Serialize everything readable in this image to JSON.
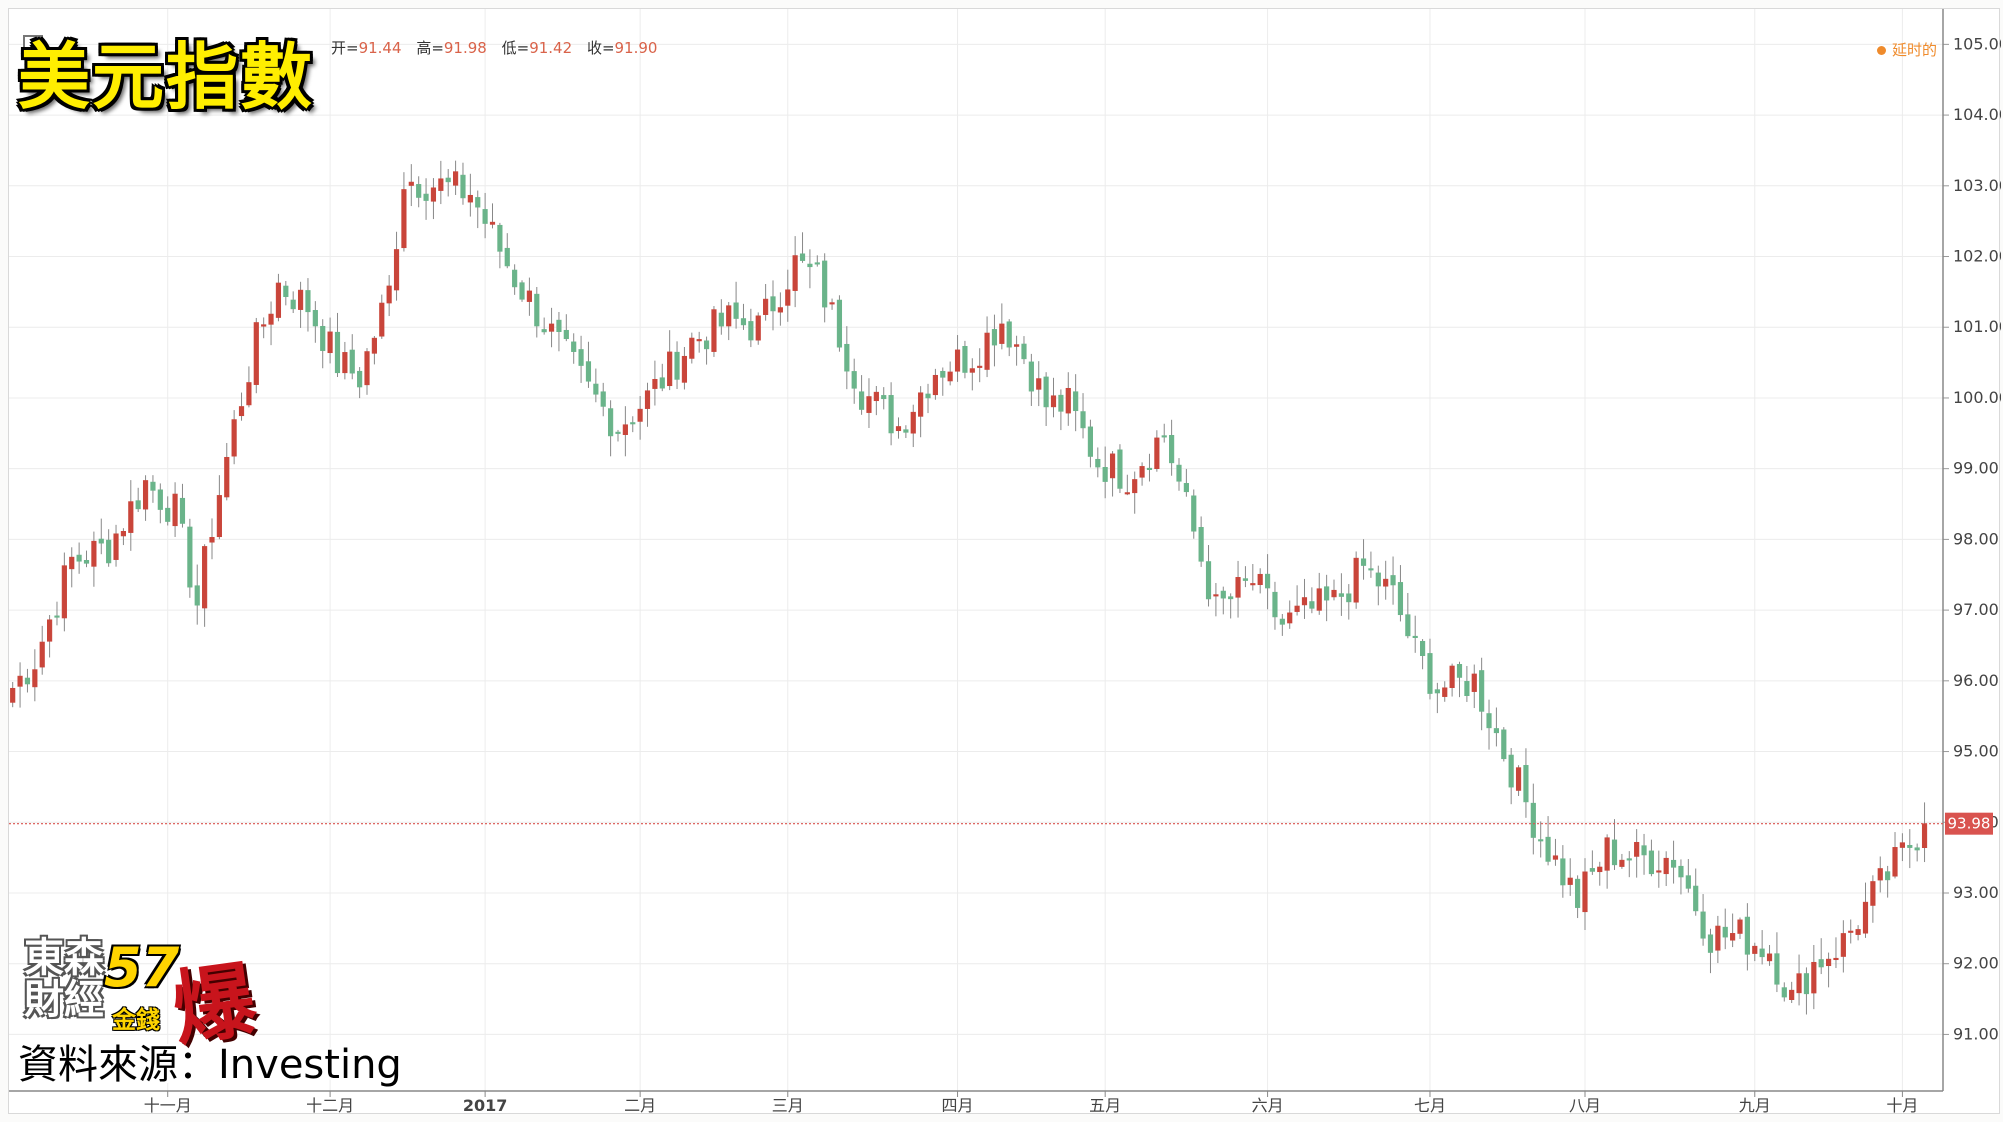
{
  "header": {
    "overlay_title": "美元指數",
    "ohlc": [
      {
        "label": "开=",
        "value": "91.44"
      },
      {
        "label": "高=",
        "value": "91.98"
      },
      {
        "label": "低=",
        "value": "91.42"
      },
      {
        "label": "收=",
        "value": "91.90"
      }
    ],
    "delay_label": "延时的"
  },
  "footer": {
    "logo_line1": "東森",
    "logo_line2": "財經",
    "logo_number": "57",
    "logo_char": "爆",
    "logo_sub": "金錢",
    "source_label": "資料來源：Investing"
  },
  "colors": {
    "up": "#c9453a",
    "down": "#6ab48a",
    "grid": "#ececec",
    "current_price_line": "#d9534f",
    "axis_text": "#444444",
    "title_fill": "#ffee00"
  },
  "chart_data": {
    "type": "candlestick",
    "instrument": "美元指數",
    "current_price": 93.98,
    "ylim": [
      90.2,
      105.5
    ],
    "y_ticks": [
      "91.00",
      "92.00",
      "93.00",
      "94.00",
      "95.00",
      "96.00",
      "97.00",
      "98.00",
      "99.00",
      "100.00",
      "101.00",
      "102.00",
      "103.00",
      "104.00",
      "105.00"
    ],
    "x_ticks": [
      {
        "label": "十一月",
        "index": 21
      },
      {
        "label": "十二月",
        "index": 43
      },
      {
        "label": "2017",
        "index": 64
      },
      {
        "label": "二月",
        "index": 85
      },
      {
        "label": "三月",
        "index": 105
      },
      {
        "label": "四月",
        "index": 128
      },
      {
        "label": "五月",
        "index": 148
      },
      {
        "label": "六月",
        "index": 170
      },
      {
        "label": "七月",
        "index": 192
      },
      {
        "label": "八月",
        "index": 213
      },
      {
        "label": "九月",
        "index": 236
      },
      {
        "label": "十月",
        "index": 256
      }
    ],
    "trend": [
      [
        0,
        95.9
      ],
      [
        3,
        96.3
      ],
      [
        8,
        97.7
      ],
      [
        13,
        97.9
      ],
      [
        18,
        98.8
      ],
      [
        22,
        98.4
      ],
      [
        25,
        97.1
      ],
      [
        27,
        98.2
      ],
      [
        30,
        99.6
      ],
      [
        33,
        100.8
      ],
      [
        36,
        101.6
      ],
      [
        40,
        101.3
      ],
      [
        44,
        100.5
      ],
      [
        47,
        100.3
      ],
      [
        51,
        101.5
      ],
      [
        53,
        103.1
      ],
      [
        58,
        103.0
      ],
      [
        62,
        102.9
      ],
      [
        68,
        101.7
      ],
      [
        73,
        100.9
      ],
      [
        78,
        100.1
      ],
      [
        82,
        99.6
      ],
      [
        86,
        100.0
      ],
      [
        92,
        100.8
      ],
      [
        97,
        101.1
      ],
      [
        101,
        101.0
      ],
      [
        106,
        101.9
      ],
      [
        109,
        101.7
      ],
      [
        115,
        100.1
      ],
      [
        120,
        99.6
      ],
      [
        125,
        100.4
      ],
      [
        130,
        100.6
      ],
      [
        134,
        101.1
      ],
      [
        137,
        100.6
      ],
      [
        140,
        99.9
      ],
      [
        143,
        99.9
      ],
      [
        147,
        99.1
      ],
      [
        151,
        98.9
      ],
      [
        156,
        99.5
      ],
      [
        160,
        98.1
      ],
      [
        163,
        97.0
      ],
      [
        168,
        97.4
      ],
      [
        172,
        96.8
      ],
      [
        176,
        97.0
      ],
      [
        179,
        97.1
      ],
      [
        183,
        97.6
      ],
      [
        187,
        97.2
      ],
      [
        190,
        96.4
      ],
      [
        193,
        95.9
      ],
      [
        198,
        96.0
      ],
      [
        202,
        95.0
      ],
      [
        207,
        93.8
      ],
      [
        212,
        92.9
      ],
      [
        216,
        93.6
      ],
      [
        220,
        93.5
      ],
      [
        225,
        93.5
      ],
      [
        230,
        92.4
      ],
      [
        234,
        92.4
      ],
      [
        238,
        92.2
      ],
      [
        241,
        91.5
      ],
      [
        244,
        92.0
      ],
      [
        248,
        92.3
      ],
      [
        251,
        92.8
      ],
      [
        255,
        93.4
      ],
      [
        259,
        93.98
      ]
    ]
  }
}
